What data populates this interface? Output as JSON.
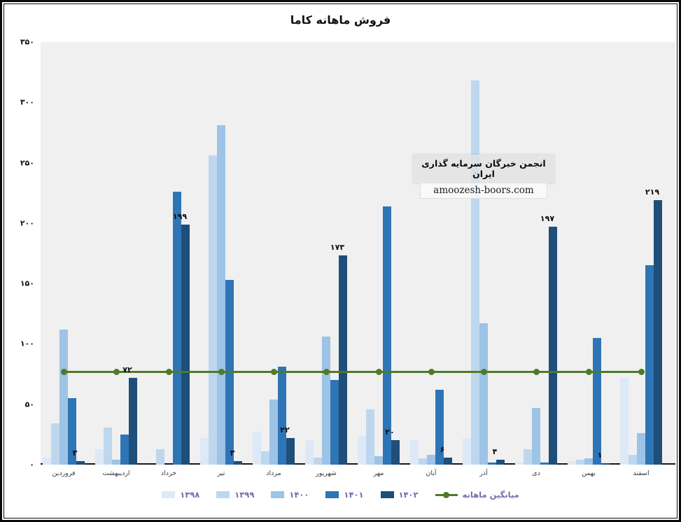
{
  "chart_data": {
    "type": "bar",
    "title": "فروش ماهانه کاما",
    "categories": [
      "فروردین",
      "اردیبهشت",
      "خرداد",
      "تیر",
      "مرداد",
      "شهریور",
      "مهر",
      "آبان",
      "آذر",
      "دی",
      "بهمن",
      "اسفند"
    ],
    "series": [
      {
        "name": "۱۳۹۸",
        "color": "#dde9f6",
        "values": [
          6,
          13,
          0,
          22,
          27,
          20,
          24,
          20,
          22,
          2,
          3,
          72
        ]
      },
      {
        "name": "۱۳۹۹",
        "color": "#bdd7ee",
        "values": [
          34,
          31,
          13,
          256,
          11,
          6,
          46,
          5,
          318,
          13,
          4,
          8
        ]
      },
      {
        "name": "۱۴۰۰",
        "color": "#9dc3e6",
        "values": [
          112,
          4,
          0,
          281,
          54,
          106,
          7,
          8,
          117,
          47,
          5,
          26
        ]
      },
      {
        "name": "۱۴۰۱",
        "color": "#2e75b6",
        "values": [
          55,
          25,
          226,
          153,
          81,
          70,
          214,
          62,
          2,
          2,
          105,
          165
        ]
      },
      {
        "name": "۱۴۰۲",
        "color": "#1f4e79",
        "values": [
          3,
          72,
          199,
          3,
          22,
          173,
          20,
          6,
          4,
          197,
          1,
          219
        ],
        "data_labels": [
          "۳",
          "۷۲",
          "۱۹۹",
          "۳",
          "۲۲",
          "۱۷۳",
          "۲۰",
          "۶",
          "۴",
          "۱۹۷",
          "۱",
          "۲۱۹"
        ]
      }
    ],
    "average_line": {
      "label": "میانگین ماهانه",
      "value": 76.6,
      "color": "#4f7a28"
    },
    "y_ticks": [
      {
        "value": 0,
        "label": "۰"
      },
      {
        "value": 50,
        "label": "۵۰"
      },
      {
        "value": 100,
        "label": "۱۰۰"
      },
      {
        "value": 150,
        "label": "۱۵۰"
      },
      {
        "value": 200,
        "label": "۲۰۰"
      },
      {
        "value": 250,
        "label": "۲۵۰"
      },
      {
        "value": 300,
        "label": "۳۰۰"
      },
      {
        "value": 350,
        "label": "۳۵۰"
      }
    ],
    "ylim": [
      0,
      350
    ],
    "xlabel": "",
    "ylabel": "",
    "grid": false,
    "legend_position": "bottom",
    "legend_text_color": "#7c67a9"
  },
  "watermark": {
    "line1": "انجمن خبرگان سرمایه گذاری ایران",
    "line2": "amoozesh-boors.com"
  }
}
